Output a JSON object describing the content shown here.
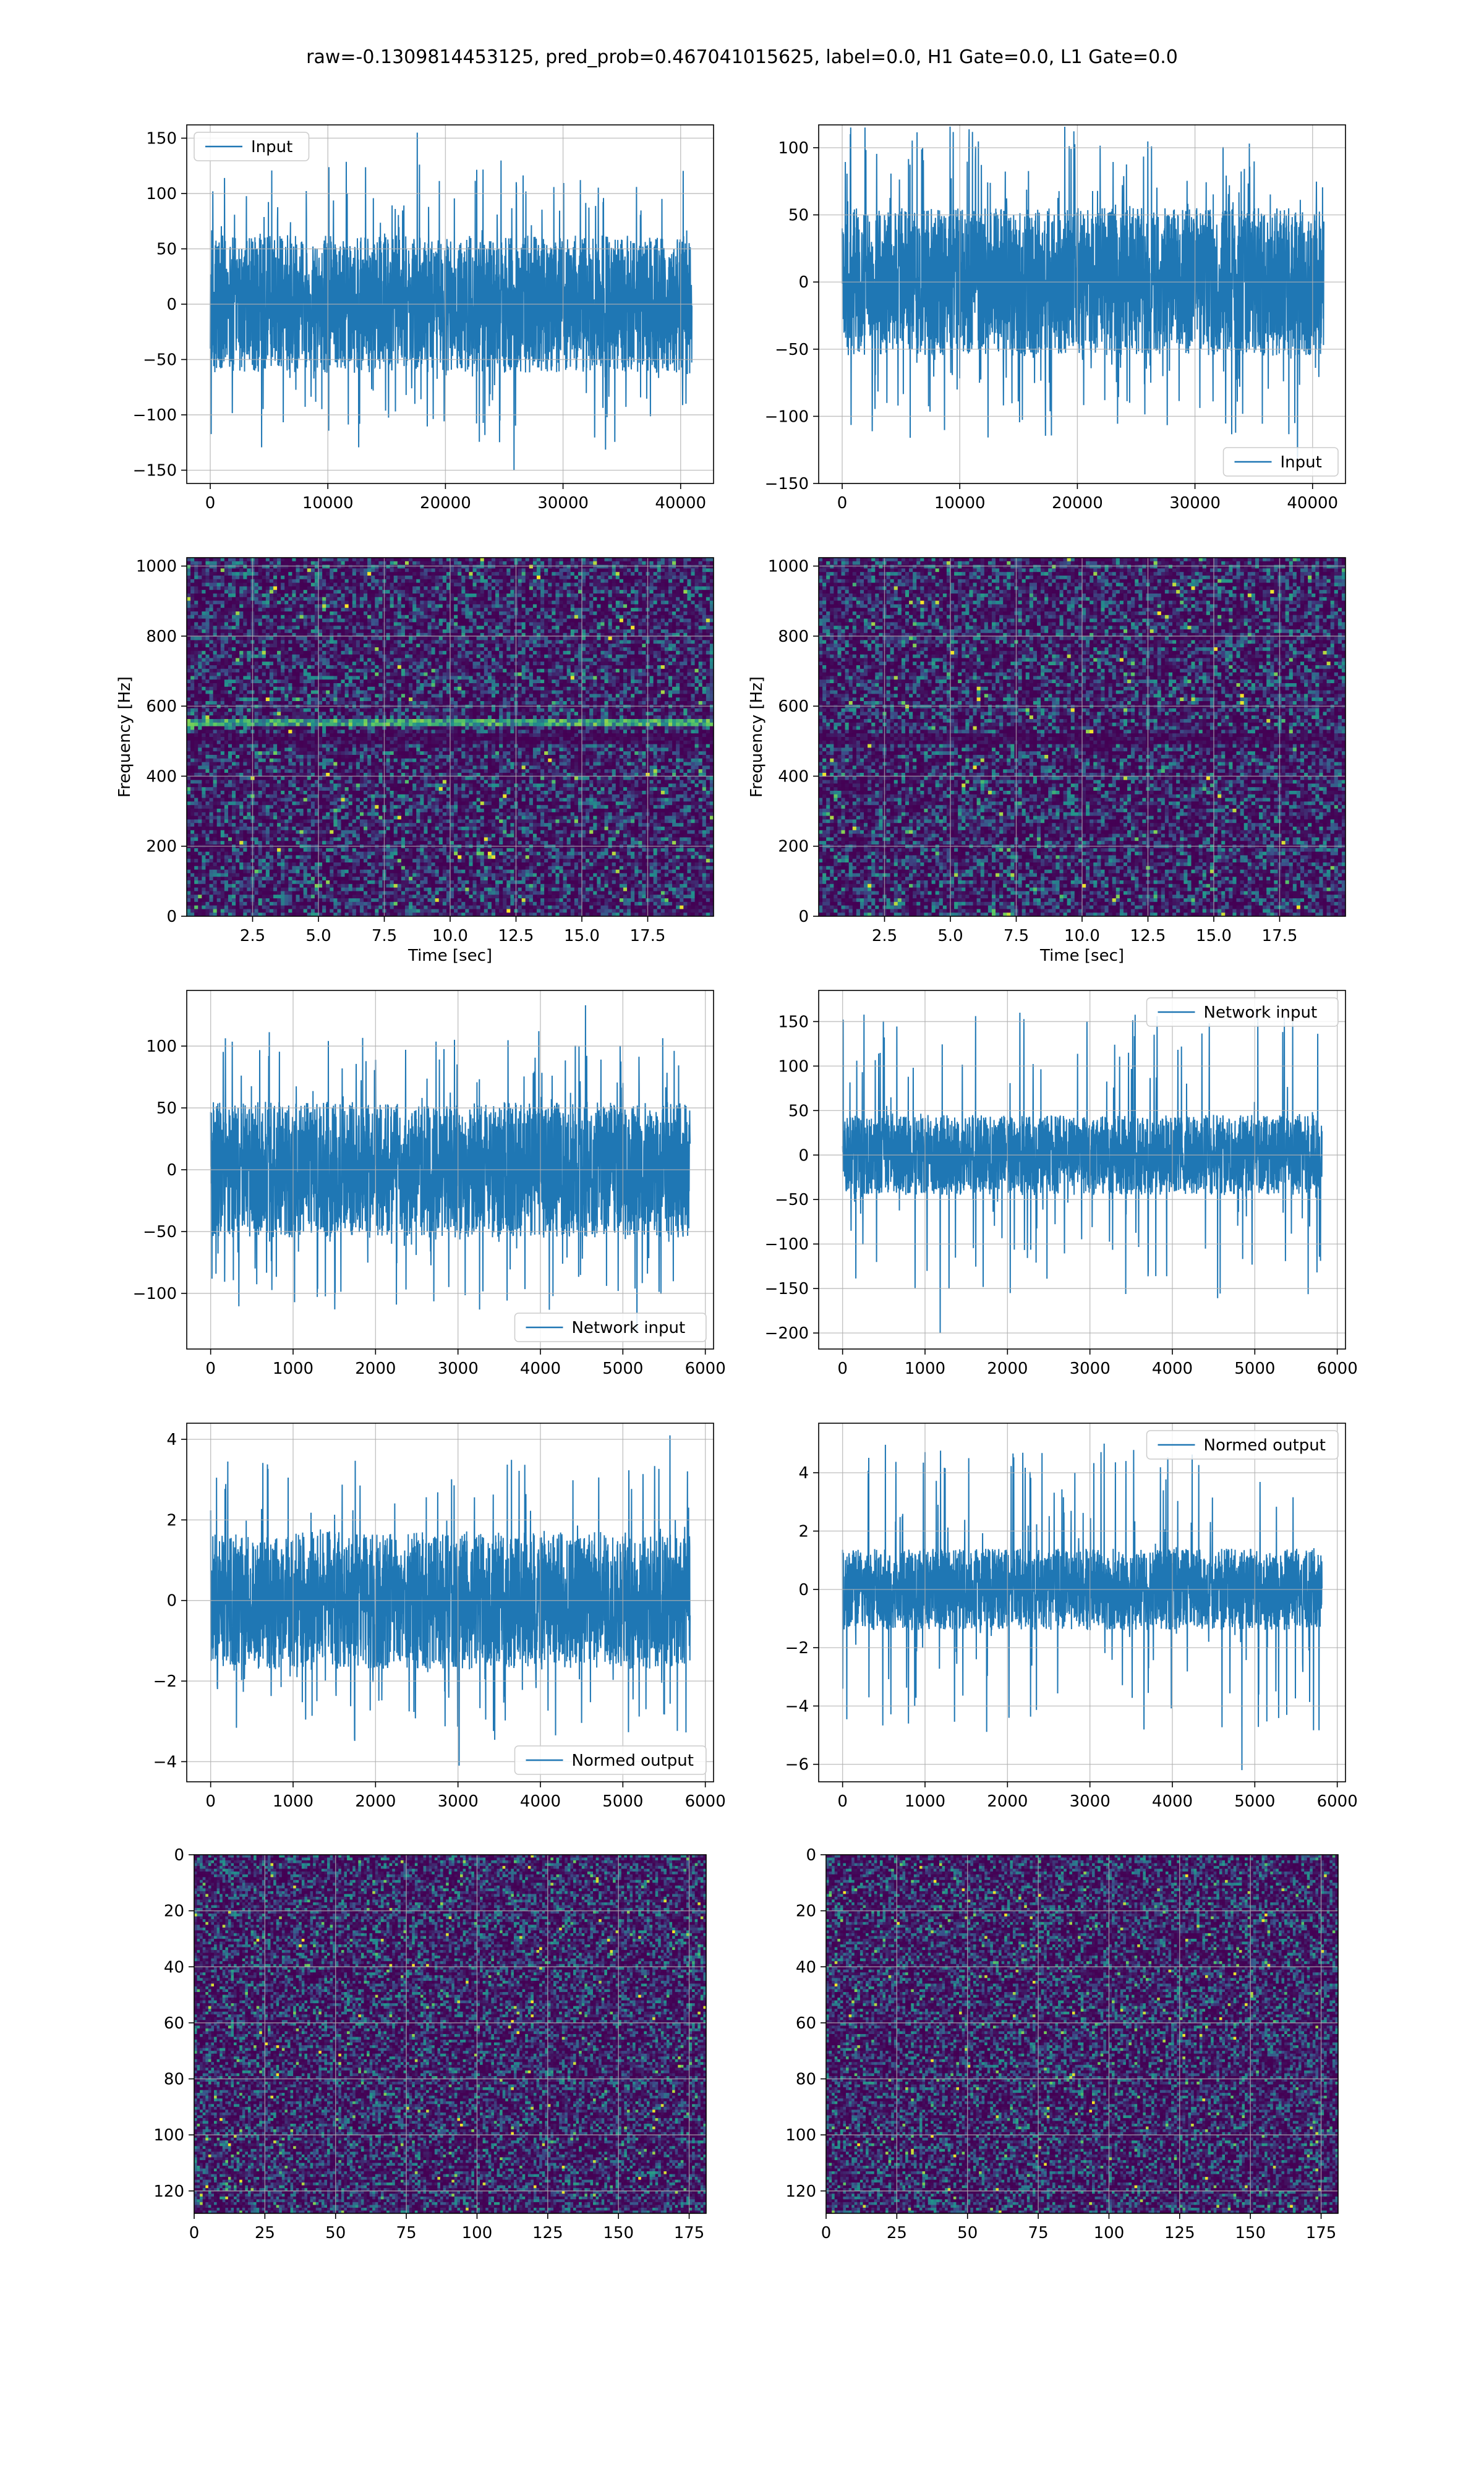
{
  "figure_title": "raw=-0.1309814453125, pred_prob=0.467041015625, label=0.0, H1 Gate=0.0, L1 Gate=0.0",
  "colors": {
    "series": "#1f77b4",
    "grid": "#b0b0b0",
    "legend_border": "#cccccc"
  },
  "chart_data": [
    {
      "type": "line",
      "legend": "Input",
      "legend_loc": "upper left",
      "xlim": [
        -2000,
        42800
      ],
      "ylim": [
        -162,
        162
      ],
      "xticks": [
        0,
        10000,
        20000,
        30000,
        40000
      ],
      "xtick_labels": [
        "0",
        "10000",
        "20000",
        "30000",
        "40000"
      ],
      "yticks": [
        -150,
        -100,
        -50,
        0,
        50,
        100,
        150
      ],
      "ytick_labels": [
        "−150",
        "−100",
        "−50",
        "0",
        "50",
        "100",
        "150"
      ],
      "xlabel": "",
      "ylabel": "",
      "grid": true,
      "x_range": [
        0,
        40960
      ],
      "band": 62,
      "spike_max": 155,
      "spike_min": -150
    },
    {
      "type": "line",
      "legend": "Input",
      "legend_loc": "lower right",
      "xlim": [
        -2000,
        42800
      ],
      "ylim": [
        -150,
        117
      ],
      "xticks": [
        0,
        10000,
        20000,
        30000,
        40000
      ],
      "xtick_labels": [
        "0",
        "10000",
        "20000",
        "30000",
        "40000"
      ],
      "yticks": [
        -150,
        -100,
        -50,
        0,
        50,
        100
      ],
      "ytick_labels": [
        "−150",
        "−100",
        "−50",
        "0",
        "50",
        "100"
      ],
      "xlabel": "",
      "ylabel": "",
      "grid": true,
      "x_range": [
        0,
        40960
      ],
      "band": 55,
      "spike_max": 115,
      "spike_min": -137
    },
    {
      "type": "heatmap",
      "subtype": "spectrogram",
      "xlim": [
        0,
        20
      ],
      "ylim": [
        0,
        1024
      ],
      "xticks": [
        2.5,
        5.0,
        7.5,
        10.0,
        12.5,
        15.0,
        17.5
      ],
      "xtick_labels": [
        "2.5",
        "5.0",
        "7.5",
        "10.0",
        "12.5",
        "15.0",
        "17.5"
      ],
      "yticks": [
        0,
        200,
        400,
        600,
        800,
        1000
      ],
      "ytick_labels": [
        "0",
        "200",
        "400",
        "600",
        "800",
        "1000"
      ],
      "xlabel": "Time [sec]",
      "ylabel": "Frequency [Hz]",
      "grid": true,
      "bright_band_hz": [
        540,
        565
      ],
      "dark_band_hz": [
        490,
        520
      ]
    },
    {
      "type": "heatmap",
      "subtype": "spectrogram",
      "xlim": [
        0,
        20
      ],
      "ylim": [
        0,
        1024
      ],
      "xticks": [
        2.5,
        5.0,
        7.5,
        10.0,
        12.5,
        15.0,
        17.5
      ],
      "xtick_labels": [
        "2.5",
        "5.0",
        "7.5",
        "10.0",
        "12.5",
        "15.0",
        "17.5"
      ],
      "yticks": [
        0,
        200,
        400,
        600,
        800,
        1000
      ],
      "ytick_labels": [
        "0",
        "200",
        "400",
        "600",
        "800",
        "1000"
      ],
      "xlabel": "Time [sec]",
      "ylabel": "Frequency [Hz]",
      "grid": true,
      "bright_band_hz": null,
      "dark_band_hz": [
        490,
        520
      ]
    },
    {
      "type": "line",
      "legend": "Network input",
      "legend_loc": "lower right",
      "xlim": [
        -290,
        6100
      ],
      "ylim": [
        -145,
        145
      ],
      "xticks": [
        0,
        1000,
        2000,
        3000,
        4000,
        5000,
        6000
      ],
      "xtick_labels": [
        "0",
        "1000",
        "2000",
        "3000",
        "4000",
        "5000",
        "6000"
      ],
      "yticks": [
        -100,
        -50,
        0,
        50,
        100
      ],
      "ytick_labels": [
        "−100",
        "−50",
        "0",
        "50",
        "100"
      ],
      "xlabel": "",
      "ylabel": "",
      "grid": true,
      "x_range": [
        0,
        5815
      ],
      "band": 55,
      "spike_max": 133,
      "spike_min": -132
    },
    {
      "type": "line",
      "legend": "Network input",
      "legend_loc": "upper right",
      "xlim": [
        -290,
        6100
      ],
      "ylim": [
        -218,
        185
      ],
      "xticks": [
        0,
        1000,
        2000,
        3000,
        4000,
        5000,
        6000
      ],
      "xtick_labels": [
        "0",
        "1000",
        "2000",
        "3000",
        "4000",
        "5000",
        "6000"
      ],
      "yticks": [
        -200,
        -150,
        -100,
        -50,
        0,
        50,
        100,
        150
      ],
      "ytick_labels": [
        "−200",
        "−150",
        "−100",
        "−50",
        "0",
        "50",
        "100",
        "150"
      ],
      "xlabel": "",
      "ylabel": "",
      "grid": true,
      "x_range": [
        0,
        5815
      ],
      "band": 45,
      "spike_max": 160,
      "spike_min": -200
    },
    {
      "type": "line",
      "legend": "Normed output",
      "legend_loc": "lower right",
      "xlim": [
        -290,
        6100
      ],
      "ylim": [
        -4.5,
        4.4
      ],
      "xticks": [
        0,
        1000,
        2000,
        3000,
        4000,
        5000,
        6000
      ],
      "xtick_labels": [
        "0",
        "1000",
        "2000",
        "3000",
        "4000",
        "5000",
        "6000"
      ],
      "yticks": [
        -4,
        -2,
        0,
        2,
        4
      ],
      "ytick_labels": [
        "−4",
        "−2",
        "0",
        "2",
        "4"
      ],
      "xlabel": "",
      "ylabel": "",
      "grid": true,
      "x_range": [
        0,
        5815
      ],
      "band": 1.7,
      "spike_max": 4.1,
      "spike_min": -4.1
    },
    {
      "type": "line",
      "legend": "Normed output",
      "legend_loc": "upper right",
      "xlim": [
        -290,
        6100
      ],
      "ylim": [
        -6.6,
        5.7
      ],
      "xticks": [
        0,
        1000,
        2000,
        3000,
        4000,
        5000,
        6000
      ],
      "xtick_labels": [
        "0",
        "1000",
        "2000",
        "3000",
        "4000",
        "5000",
        "6000"
      ],
      "yticks": [
        -6,
        -4,
        -2,
        0,
        2,
        4
      ],
      "ytick_labels": [
        "−6",
        "−4",
        "−2",
        "0",
        "2",
        "4"
      ],
      "xlabel": "",
      "ylabel": "",
      "grid": true,
      "x_range": [
        0,
        5815
      ],
      "band": 1.4,
      "spike_max": 5.0,
      "spike_min": -6.2
    },
    {
      "type": "heatmap",
      "subtype": "matrix",
      "xlim": [
        0,
        181
      ],
      "ylim": [
        128,
        0
      ],
      "cols": 181,
      "rows": 128,
      "xticks": [
        0,
        25,
        50,
        75,
        100,
        125,
        150,
        175
      ],
      "xtick_labels": [
        "0",
        "25",
        "50",
        "75",
        "100",
        "125",
        "150",
        "175"
      ],
      "yticks": [
        0,
        20,
        40,
        60,
        80,
        100,
        120
      ],
      "ytick_labels": [
        "0",
        "20",
        "40",
        "60",
        "80",
        "100",
        "120"
      ],
      "xlabel": "",
      "ylabel": "",
      "grid": true
    },
    {
      "type": "heatmap",
      "subtype": "matrix",
      "xlim": [
        0,
        181
      ],
      "ylim": [
        128,
        0
      ],
      "cols": 181,
      "rows": 128,
      "xticks": [
        0,
        25,
        50,
        75,
        100,
        125,
        150,
        175
      ],
      "xtick_labels": [
        "0",
        "25",
        "50",
        "75",
        "100",
        "125",
        "150",
        "175"
      ],
      "yticks": [
        0,
        20,
        40,
        60,
        80,
        100,
        120
      ],
      "ytick_labels": [
        "0",
        "20",
        "40",
        "60",
        "80",
        "100",
        "120"
      ],
      "xlabel": "",
      "ylabel": "",
      "grid": true
    }
  ]
}
